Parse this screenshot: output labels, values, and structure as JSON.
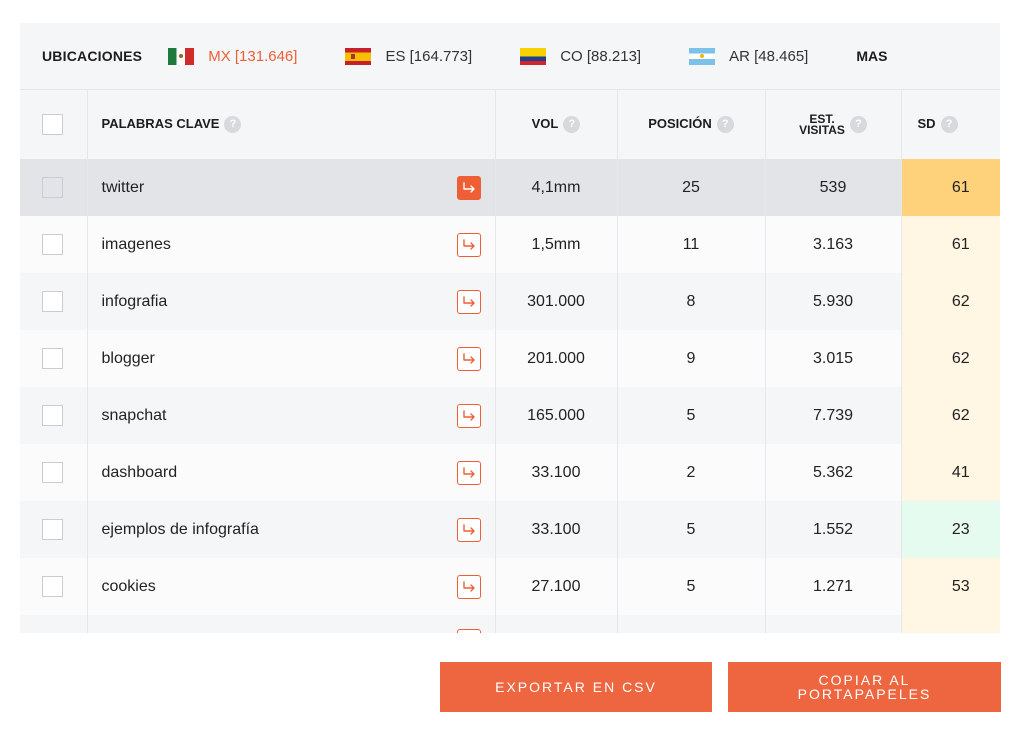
{
  "locations": {
    "title": "UBICACIONES",
    "items": [
      {
        "code": "MX",
        "count": "[131.646]",
        "active": true
      },
      {
        "code": "ES",
        "count": "[164.773]",
        "active": false
      },
      {
        "code": "CO",
        "count": "[88.213]",
        "active": false
      },
      {
        "code": "AR",
        "count": "[48.465]",
        "active": false
      }
    ],
    "more": "MAS"
  },
  "table": {
    "headers": {
      "keyword": "PALABRAS CLAVE",
      "vol": "VOL",
      "position": "POSICIÓN",
      "visits_line1": "EST.",
      "visits_line2": "VISITAS",
      "sd": "SD",
      "help": "?"
    },
    "rows": [
      {
        "keyword": "twitter",
        "vol": "4,1mm",
        "position": "25",
        "visits": "539",
        "sd": "61",
        "sd_color": "#fdd27a",
        "selected": true
      },
      {
        "keyword": "imagenes",
        "vol": "1,5mm",
        "position": "11",
        "visits": "3.163",
        "sd": "61",
        "sd_color": "#fff6e4",
        "selected": false
      },
      {
        "keyword": "infografia",
        "vol": "301.000",
        "position": "8",
        "visits": "5.930",
        "sd": "62",
        "sd_color": "#fff6e4",
        "selected": false
      },
      {
        "keyword": "blogger",
        "vol": "201.000",
        "position": "9",
        "visits": "3.015",
        "sd": "62",
        "sd_color": "#fff6e4",
        "selected": false
      },
      {
        "keyword": "snapchat",
        "vol": "165.000",
        "position": "5",
        "visits": "7.739",
        "sd": "62",
        "sd_color": "#fff6e4",
        "selected": false
      },
      {
        "keyword": "dashboard",
        "vol": "33.100",
        "position": "2",
        "visits": "5.362",
        "sd": "41",
        "sd_color": "#fff6e4",
        "selected": false
      },
      {
        "keyword": "ejemplos de infografía",
        "vol": "33.100",
        "position": "5",
        "visits": "1.552",
        "sd": "23",
        "sd_color": "#e5fbef",
        "selected": false
      },
      {
        "keyword": "cookies",
        "vol": "27.100",
        "position": "5",
        "visits": "1.271",
        "sd": "53",
        "sd_color": "#fff6e4",
        "selected": false
      }
    ]
  },
  "buttons": {
    "export_csv": "EXPORTAR EN CSV",
    "copy_line1": "COPIAR AL",
    "copy_line2": "PORTAPAPELES"
  },
  "colors": {
    "accent": "#ee5f36"
  }
}
